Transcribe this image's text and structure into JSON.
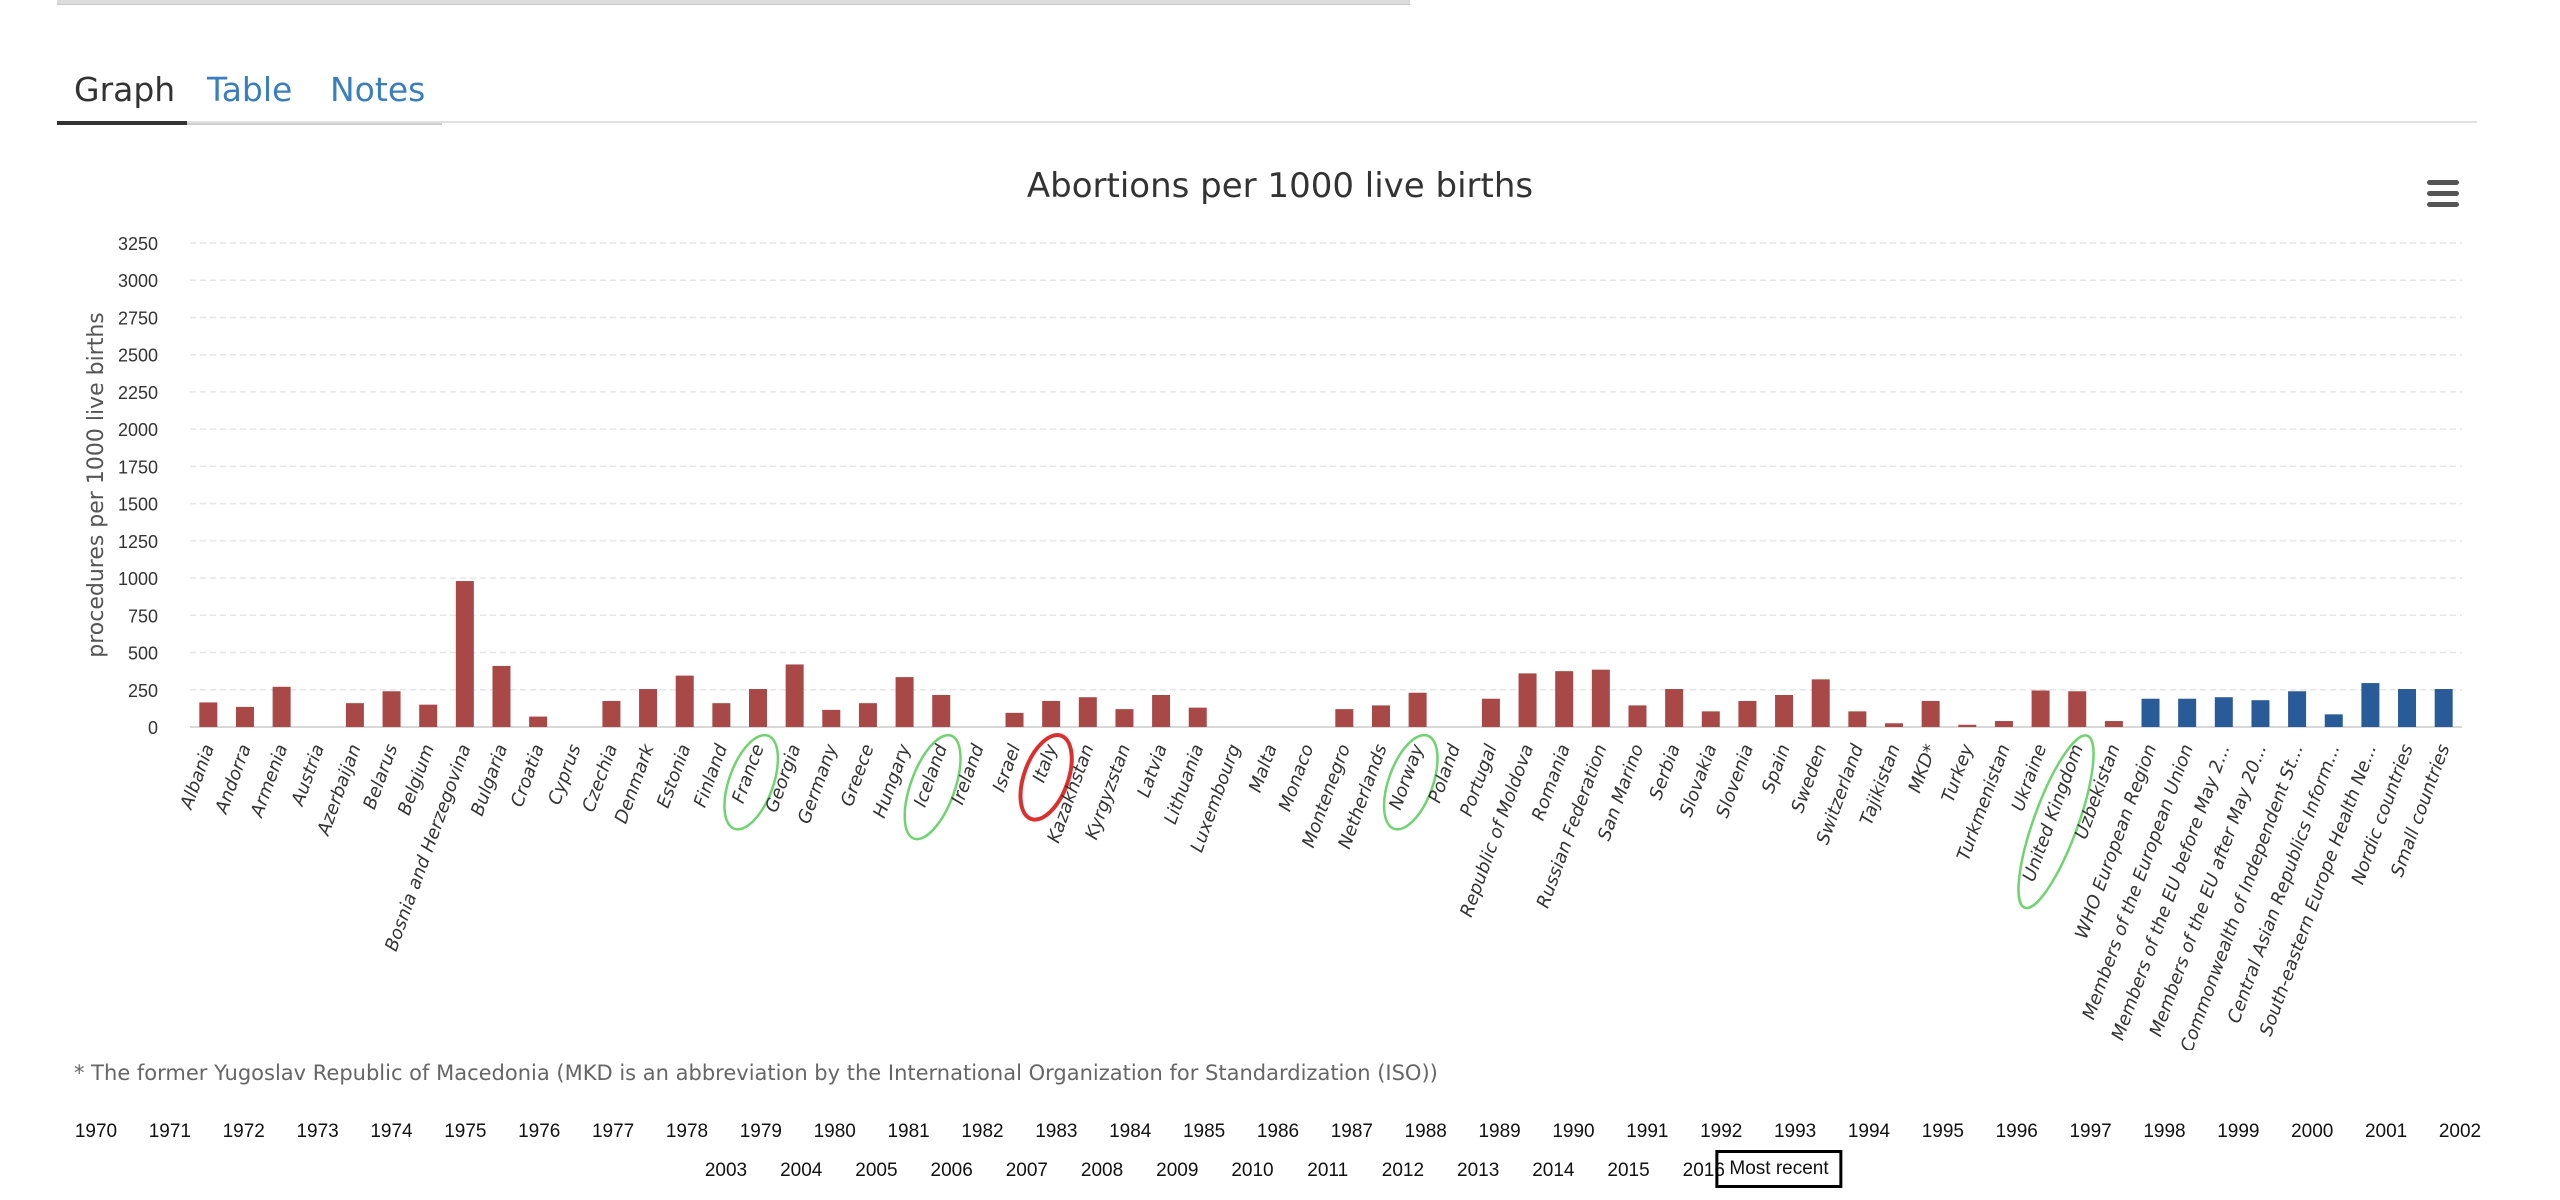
{
  "tabs": [
    {
      "label": "Graph",
      "active": true
    },
    {
      "label": "Table",
      "active": false
    },
    {
      "label": "Notes",
      "active": false
    }
  ],
  "chart_data": {
    "type": "bar",
    "title": "Abortions per 1000 live births",
    "xlabel": "",
    "ylabel": "procedures per 1000 live births",
    "ylim": [
      0,
      3250
    ],
    "yticks": [
      0,
      250,
      500,
      750,
      1000,
      1250,
      1500,
      1750,
      2000,
      2250,
      2500,
      2750,
      3000,
      3250
    ],
    "grid": true,
    "legend": "none",
    "categories": [
      "Albania",
      "Andorra",
      "Armenia",
      "Austria",
      "Azerbaijan",
      "Belarus",
      "Belgium",
      "Bosnia and Herzegovina",
      "Bulgaria",
      "Croatia",
      "Cyprus",
      "Czechia",
      "Denmark",
      "Estonia",
      "Finland",
      "France",
      "Georgia",
      "Germany",
      "Greece",
      "Hungary",
      "Iceland",
      "Ireland",
      "Israel",
      "Italy",
      "Kazakhstan",
      "Kyrgyzstan",
      "Latvia",
      "Lithuania",
      "Luxembourg",
      "Malta",
      "Monaco",
      "Montenegro",
      "Netherlands",
      "Norway",
      "Poland",
      "Portugal",
      "Republic of Moldova",
      "Romania",
      "Russian Federation",
      "San Marino",
      "Serbia",
      "Slovakia",
      "Slovenia",
      "Spain",
      "Sweden",
      "Switzerland",
      "Tajikistan",
      "MKD*",
      "Turkey",
      "Turkmenistan",
      "Ukraine",
      "United Kingdom",
      "Uzbekistan",
      "WHO European Region",
      "Members of the European Union",
      "Members of the EU before May 2...",
      "Members of the EU after May 20...",
      "Commonwealth of Independent St...",
      "Central Asian Republics Inform...",
      "South-eastern Europe Health Ne...",
      "Nordic countries",
      "Small countries"
    ],
    "values": [
      165,
      135,
      270,
      0,
      160,
      240,
      150,
      980,
      410,
      70,
      0,
      175,
      255,
      345,
      160,
      255,
      420,
      115,
      160,
      335,
      215,
      0,
      95,
      175,
      200,
      120,
      215,
      130,
      0,
      0,
      0,
      120,
      145,
      230,
      0,
      190,
      360,
      375,
      385,
      145,
      255,
      105,
      175,
      215,
      320,
      105,
      25,
      175,
      15,
      40,
      245,
      240,
      40,
      190,
      190,
      200,
      180,
      240,
      85,
      295,
      255,
      255
    ],
    "series_colors": {
      "country": "#a84847",
      "aggregate": "#295b98"
    },
    "aggregate_start_index": 53,
    "annotations": [
      {
        "label": "France",
        "color": "#6fd36f"
      },
      {
        "label": "Iceland",
        "color": "#6fd36f"
      },
      {
        "label": "Italy",
        "color": "#d93030"
      },
      {
        "label": "Norway",
        "color": "#6fd36f"
      },
      {
        "label": "United Kingdom",
        "color": "#6fd36f"
      }
    ]
  },
  "footnote": "* The former Yugoslav Republic of Macedonia (MKD is an abbreviation by the International Organization for Standardization (ISO))",
  "years_row1": [
    "1970",
    "1971",
    "1972",
    "1973",
    "1974",
    "1975",
    "1976",
    "1977",
    "1978",
    "1979",
    "1980",
    "1981",
    "1982",
    "1983",
    "1984",
    "1985",
    "1986",
    "1987",
    "1988",
    "1989",
    "1990",
    "1991",
    "1992",
    "1993",
    "1994",
    "1995",
    "1996",
    "1997",
    "1998",
    "1999",
    "2000",
    "2001",
    "2002"
  ],
  "years_row2": [
    "2003",
    "2004",
    "2005",
    "2006",
    "2007",
    "2008",
    "2009",
    "2010",
    "2011",
    "2012",
    "2013",
    "2014",
    "2015",
    "2016",
    "Most recent"
  ],
  "selected_year": "Most recent",
  "colors": {
    "tab_link": "#3a7ebf",
    "grid": "#e6e6e6",
    "text": "#333333"
  }
}
